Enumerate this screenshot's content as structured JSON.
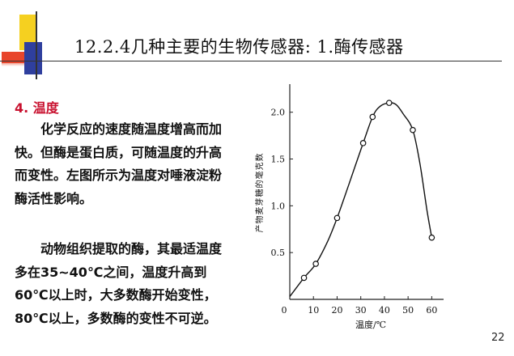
{
  "title": "12.2.4几种主要的生物传感器:  1.酶传感器",
  "section_heading": "4. 温度",
  "paragraphs": [
    "化学反应的速度随温度增高而加快。但酶是蛋白质，可随温度的升高而变性。左图所示为温度对唾液淀粉酶活性影响。",
    "动物组织提取的酶，其最适温度多在35~40℃之间，温度升高到60℃以上时，大多数酶开始变性，80℃以上，多数酶的变性不可逆。"
  ],
  "page_number": "22",
  "colors": {
    "heading": "#c8102e",
    "deco_yellow": "#f5d020",
    "deco_red": "#e8452c",
    "deco_blue": "#2f3f9e"
  },
  "chart_data": {
    "type": "line",
    "xlabel": "温度/℃",
    "ylabel": "产物麦芽糖的毫克数",
    "xlim": [
      0,
      65
    ],
    "ylim": [
      0,
      2.3
    ],
    "x_ticks": [
      "0",
      "10",
      "20",
      "30",
      "40",
      "50",
      "60"
    ],
    "y_ticks": [
      "0.5",
      "1.0",
      "1.5",
      "2.0"
    ],
    "x_tick_values": [
      0,
      10,
      20,
      30,
      40,
      50,
      60
    ],
    "y_tick_values": [
      0.5,
      1.0,
      1.5,
      2.0
    ],
    "series": [
      {
        "points": [
          [
            6,
            0.23
          ],
          [
            11,
            0.38
          ],
          [
            20,
            0.87
          ],
          [
            31,
            1.67
          ],
          [
            35,
            1.95
          ],
          [
            42,
            2.1
          ],
          [
            52,
            1.81
          ],
          [
            60,
            0.66
          ]
        ]
      }
    ],
    "curve": [
      [
        0,
        0.03
      ],
      [
        6,
        0.23
      ],
      [
        11,
        0.38
      ],
      [
        16,
        0.62
      ],
      [
        20,
        0.87
      ],
      [
        25,
        1.23
      ],
      [
        31,
        1.67
      ],
      [
        35,
        1.95
      ],
      [
        38,
        2.06
      ],
      [
        42,
        2.1
      ],
      [
        45,
        2.08
      ],
      [
        48,
        1.98
      ],
      [
        52,
        1.81
      ],
      [
        55,
        1.45
      ],
      [
        58,
        0.95
      ],
      [
        60,
        0.66
      ]
    ],
    "grid": false,
    "legend": "none"
  }
}
